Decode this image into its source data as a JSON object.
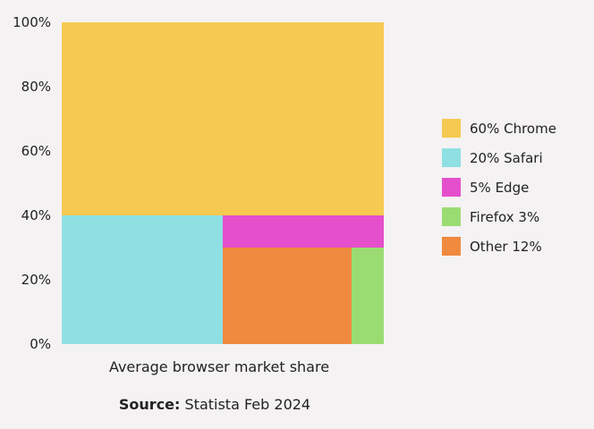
{
  "chart_data": {
    "type": "treemap",
    "xlabel": "Average browser market share",
    "ylim": [
      0,
      100
    ],
    "y_ticks": [
      "100%",
      "80%",
      "60%",
      "40%",
      "20%",
      "0%"
    ],
    "legend_position": "right",
    "series": [
      {
        "name": "60% Chrome",
        "browser": "Chrome",
        "value": 60,
        "color": "#f6c951"
      },
      {
        "name": "20% Safari",
        "browser": "Safari",
        "value": 20,
        "color": "#8ee0e2"
      },
      {
        "name": "5% Edge",
        "browser": "Edge",
        "value": 5,
        "color": "#e54fcb"
      },
      {
        "name": "Firefox 3%",
        "browser": "Firefox",
        "value": 3,
        "color": "#9bdc72"
      },
      {
        "name": "Other 12%",
        "browser": "Other",
        "value": 12,
        "color": "#ef8a3f"
      }
    ]
  },
  "source": {
    "label": "Source:",
    "text": "Statista Feb 2024"
  }
}
